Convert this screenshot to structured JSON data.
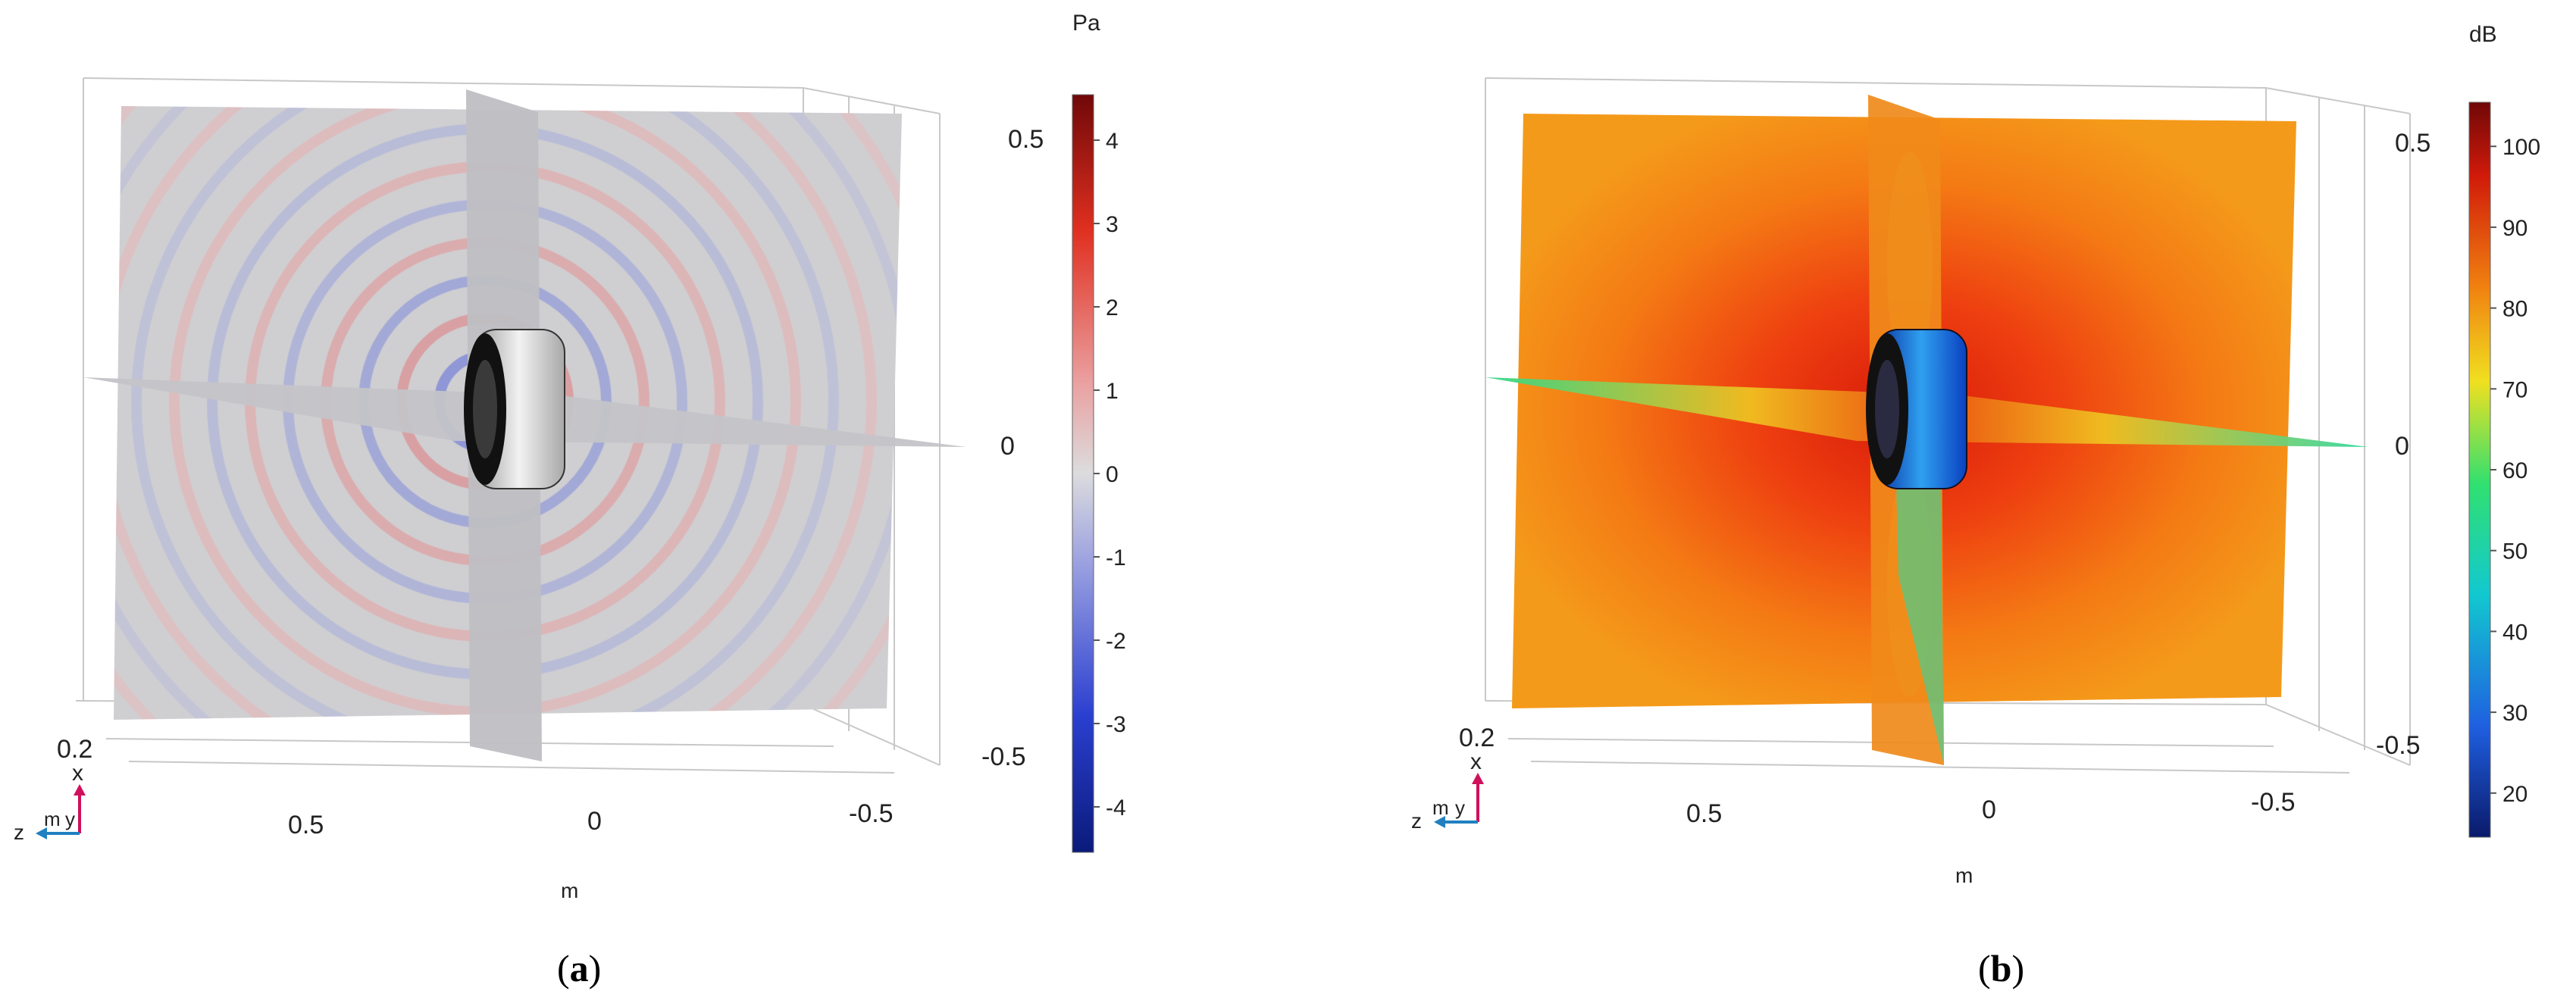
{
  "panels": [
    {
      "caption": "a",
      "unit": "Pa",
      "colorbar_ticks": [
        "4",
        "3",
        "2",
        "1",
        "0",
        "-1",
        "-2",
        "-3",
        "-4"
      ],
      "vertical_axis_ticks": [
        "0.5",
        "0",
        "-0.5"
      ],
      "horizontal_axis_ticks": [
        "0.5",
        "0",
        "-0.5"
      ],
      "depth_tick": "0.2",
      "axis_unit": "m",
      "triad_labels": {
        "x": "x",
        "y": "y",
        "z": "z",
        "m": "m"
      },
      "colormap": [
        "#0a1a7a",
        "#2a3fd0",
        "#8f96e0",
        "#d8d8dc",
        "#e8a0a0",
        "#e03020",
        "#7a0a0a"
      ]
    },
    {
      "caption": "b",
      "unit": "dB",
      "colorbar_ticks": [
        "100",
        "90",
        "80",
        "70",
        "60",
        "50",
        "40",
        "30",
        "20"
      ],
      "vertical_axis_ticks": [
        "0.5",
        "0",
        "-0.5"
      ],
      "horizontal_axis_ticks": [
        "0.5",
        "0",
        "-0.5"
      ],
      "depth_tick": "0.2",
      "axis_unit": "m",
      "triad_labels": {
        "x": "x",
        "y": "y",
        "z": "z",
        "m": "m"
      },
      "colormap": [
        "#0a1a6a",
        "#1f5fe0",
        "#12c8d0",
        "#30e070",
        "#f0e020",
        "#f08010",
        "#d01a0a",
        "#7a0a0a"
      ]
    }
  ]
}
